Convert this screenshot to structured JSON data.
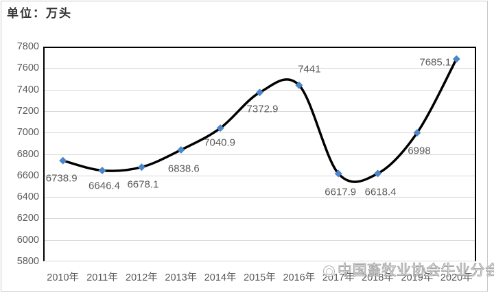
{
  "title": "单位：万头",
  "watermark": {
    "logo_icon": "association-logo-icon",
    "text": "中国畜牧业协会牛业分会"
  },
  "chart_data": {
    "type": "line",
    "title": "单位：万头",
    "categories": [
      "2010年",
      "2011年",
      "2012年",
      "2013年",
      "2014年",
      "2015年",
      "2016年",
      "2017年",
      "2018年",
      "2019年",
      "2020年"
    ],
    "values": [
      6738.9,
      6646.4,
      6678.1,
      6838.6,
      7040.9,
      7372.9,
      7441,
      6617.9,
      6618.4,
      6998,
      7685.1
    ],
    "labels": [
      "6738.9",
      "6646.4",
      "6678.1",
      "6838.6",
      "7040.9",
      "7372.9",
      "7441",
      "6617.9",
      "6618.4",
      "6998",
      "7685.1"
    ],
    "xlabel": "",
    "ylabel": "",
    "ylim": [
      5800,
      7800
    ],
    "ytick_step": 200,
    "y_ticks": [
      5800,
      6000,
      6200,
      6400,
      6600,
      6800,
      7000,
      7200,
      7400,
      7600,
      7800
    ],
    "grid": true,
    "legend": "none",
    "smooth": true,
    "colors": {
      "line": "#000000",
      "marker": "#4a86c8",
      "gridline": "#d9d9d9",
      "axis_text": "#595959",
      "label_text": "#595959"
    }
  }
}
